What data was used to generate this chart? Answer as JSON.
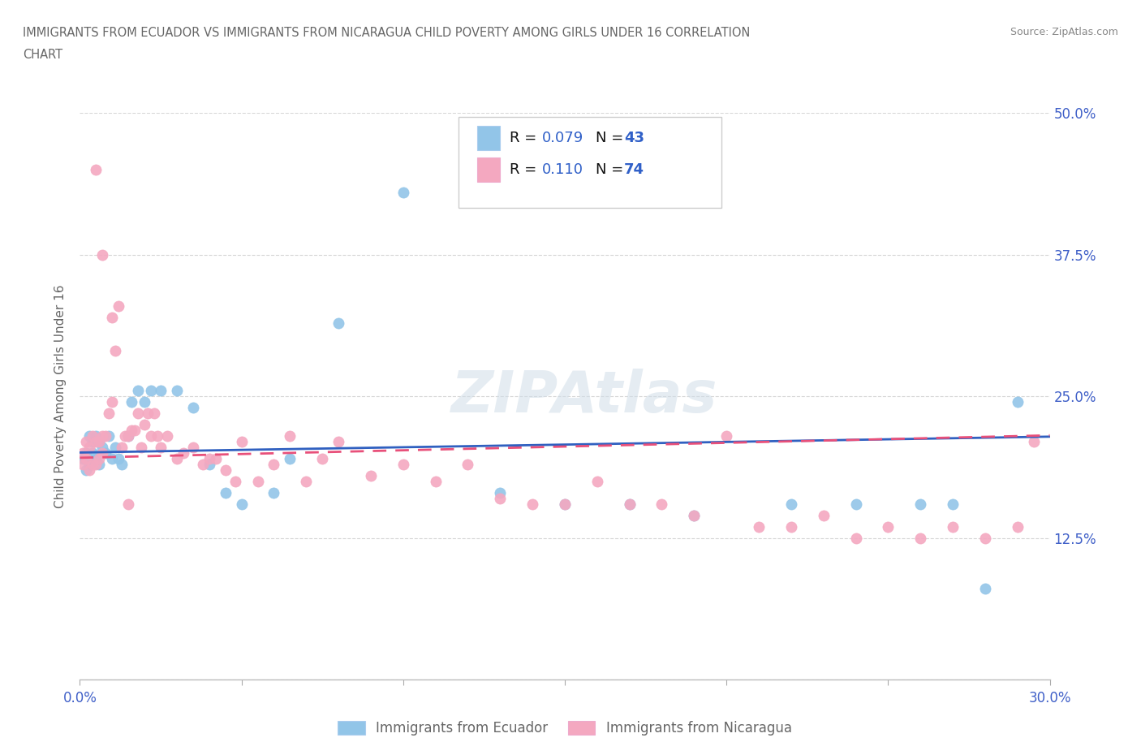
{
  "title_line1": "IMMIGRANTS FROM ECUADOR VS IMMIGRANTS FROM NICARAGUA CHILD POVERTY AMONG GIRLS UNDER 16 CORRELATION",
  "title_line2": "CHART",
  "source_text": "Source: ZipAtlas.com",
  "ylabel": "Child Poverty Among Girls Under 16",
  "xlim": [
    0.0,
    0.3
  ],
  "ylim": [
    0.0,
    0.5
  ],
  "xticks": [
    0.0,
    0.05,
    0.1,
    0.15,
    0.2,
    0.25,
    0.3
  ],
  "xtick_labels": [
    "0.0%",
    "",
    "",
    "",
    "",
    "",
    "30.0%"
  ],
  "yticks": [
    0.0,
    0.125,
    0.25,
    0.375,
    0.5
  ],
  "ytick_labels": [
    "",
    "12.5%",
    "25.0%",
    "37.5%",
    "50.0%"
  ],
  "ecuador_color": "#92C5E8",
  "nicaragua_color": "#F4A8C0",
  "ecuador_line_color": "#3060C0",
  "nicaragua_line_color": "#E8507A",
  "ecuador_R": 0.079,
  "ecuador_N": 43,
  "nicaragua_R": 0.11,
  "nicaragua_N": 74,
  "watermark": "ZIPAtlas",
  "ecuador_x": [
    0.001,
    0.002,
    0.002,
    0.003,
    0.003,
    0.004,
    0.004,
    0.005,
    0.005,
    0.006,
    0.006,
    0.007,
    0.008,
    0.009,
    0.01,
    0.011,
    0.012,
    0.013,
    0.015,
    0.016,
    0.018,
    0.02,
    0.022,
    0.025,
    0.03,
    0.035,
    0.04,
    0.045,
    0.05,
    0.06,
    0.065,
    0.08,
    0.1,
    0.13,
    0.15,
    0.17,
    0.19,
    0.22,
    0.24,
    0.26,
    0.27,
    0.28,
    0.29
  ],
  "ecuador_y": [
    0.195,
    0.2,
    0.185,
    0.215,
    0.19,
    0.2,
    0.21,
    0.195,
    0.215,
    0.19,
    0.21,
    0.205,
    0.2,
    0.215,
    0.195,
    0.205,
    0.195,
    0.19,
    0.215,
    0.245,
    0.255,
    0.245,
    0.255,
    0.255,
    0.255,
    0.24,
    0.19,
    0.165,
    0.155,
    0.165,
    0.195,
    0.315,
    0.43,
    0.165,
    0.155,
    0.155,
    0.145,
    0.155,
    0.155,
    0.155,
    0.155,
    0.08,
    0.245
  ],
  "nicaragua_x": [
    0.001,
    0.001,
    0.002,
    0.002,
    0.003,
    0.003,
    0.004,
    0.004,
    0.005,
    0.005,
    0.006,
    0.006,
    0.007,
    0.007,
    0.008,
    0.009,
    0.01,
    0.011,
    0.012,
    0.013,
    0.014,
    0.015,
    0.016,
    0.017,
    0.018,
    0.019,
    0.02,
    0.021,
    0.022,
    0.023,
    0.024,
    0.025,
    0.027,
    0.03,
    0.032,
    0.035,
    0.038,
    0.04,
    0.042,
    0.045,
    0.048,
    0.05,
    0.055,
    0.06,
    0.065,
    0.07,
    0.075,
    0.08,
    0.09,
    0.1,
    0.11,
    0.12,
    0.13,
    0.14,
    0.15,
    0.16,
    0.17,
    0.18,
    0.19,
    0.2,
    0.21,
    0.22,
    0.23,
    0.24,
    0.25,
    0.26,
    0.27,
    0.28,
    0.29,
    0.295,
    0.005,
    0.007,
    0.01,
    0.015
  ],
  "nicaragua_y": [
    0.19,
    0.2,
    0.195,
    0.21,
    0.185,
    0.205,
    0.19,
    0.215,
    0.19,
    0.21,
    0.21,
    0.195,
    0.2,
    0.215,
    0.215,
    0.235,
    0.245,
    0.29,
    0.33,
    0.205,
    0.215,
    0.215,
    0.22,
    0.22,
    0.235,
    0.205,
    0.225,
    0.235,
    0.215,
    0.235,
    0.215,
    0.205,
    0.215,
    0.195,
    0.2,
    0.205,
    0.19,
    0.195,
    0.195,
    0.185,
    0.175,
    0.21,
    0.175,
    0.19,
    0.215,
    0.175,
    0.195,
    0.21,
    0.18,
    0.19,
    0.175,
    0.19,
    0.16,
    0.155,
    0.155,
    0.175,
    0.155,
    0.155,
    0.145,
    0.215,
    0.135,
    0.135,
    0.145,
    0.125,
    0.135,
    0.125,
    0.135,
    0.125,
    0.135,
    0.21,
    0.45,
    0.375,
    0.32,
    0.155
  ]
}
